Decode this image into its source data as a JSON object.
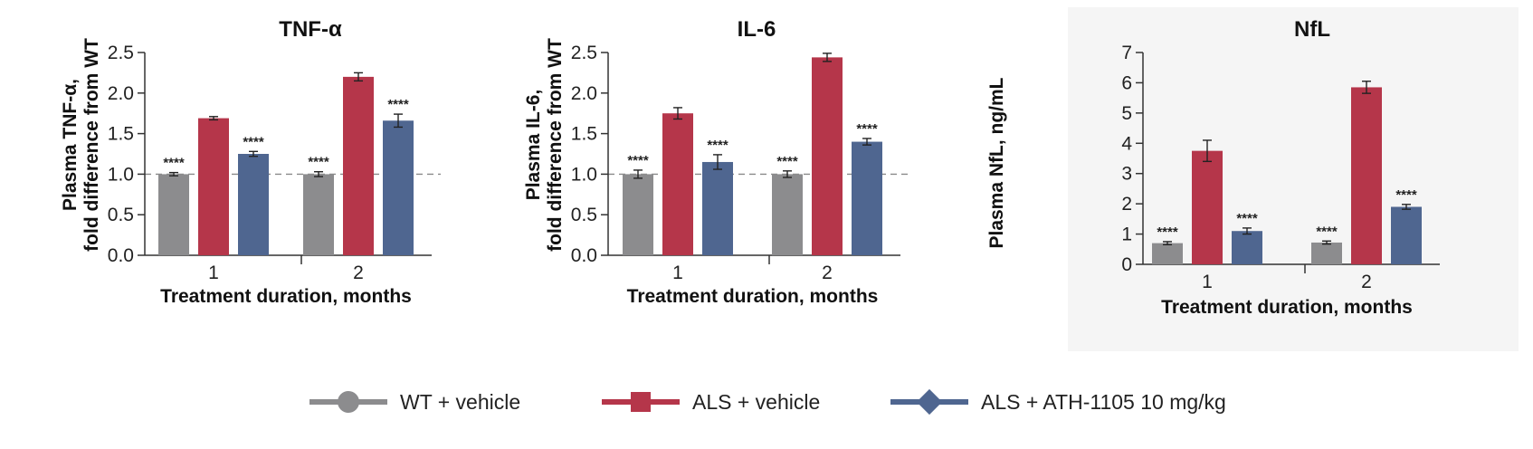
{
  "colors": {
    "wt": "#8c8c8e",
    "als": "#b5364a",
    "ath": "#4f6690"
  },
  "legend": [
    {
      "name": "WT + vehicle",
      "color": "#8c8c8e",
      "marker": "circle"
    },
    {
      "name": "ALS + vehicle",
      "color": "#b5364a",
      "marker": "square"
    },
    {
      "name": "ALS + ATH-1105 10 mg/kg",
      "color": "#4f6690",
      "marker": "diamond"
    }
  ],
  "chart_data": [
    {
      "type": "bar",
      "title": "TNF-α",
      "ylabel_lines": [
        "Plasma TNF-α,",
        "fold difference from WT"
      ],
      "xlabel": "Treatment duration, months",
      "categories": [
        "1",
        "2"
      ],
      "ylim": [
        0,
        2.5
      ],
      "yticks": [
        "0.0",
        "0.5",
        "1.0",
        "1.5",
        "2.0",
        "2.5"
      ],
      "reference_line": 1.0,
      "series": [
        {
          "name": "WT + vehicle",
          "values": [
            1.0,
            1.0
          ],
          "errors": [
            0.02,
            0.03
          ],
          "sig": [
            "****",
            "****"
          ]
        },
        {
          "name": "ALS + vehicle",
          "values": [
            1.69,
            2.2
          ],
          "errors": [
            0.02,
            0.05
          ],
          "sig": [
            "",
            ""
          ]
        },
        {
          "name": "ALS + ATH-1105 10 mg/kg",
          "values": [
            1.25,
            1.66
          ],
          "errors": [
            0.03,
            0.08
          ],
          "sig": [
            "****",
            "****"
          ]
        }
      ]
    },
    {
      "type": "bar",
      "title": "IL-6",
      "ylabel_lines": [
        "Plasma IL-6,",
        "fold difference from WT"
      ],
      "xlabel": "Treatment duration, months",
      "categories": [
        "1",
        "2"
      ],
      "ylim": [
        0,
        2.5
      ],
      "yticks": [
        "0.0",
        "0.5",
        "1.0",
        "1.5",
        "2.0",
        "2.5"
      ],
      "reference_line": 1.0,
      "series": [
        {
          "name": "WT + vehicle",
          "values": [
            1.0,
            1.0
          ],
          "errors": [
            0.05,
            0.04
          ],
          "sig": [
            "****",
            "****"
          ]
        },
        {
          "name": "ALS + vehicle",
          "values": [
            1.75,
            2.44
          ],
          "errors": [
            0.07,
            0.05
          ],
          "sig": [
            "",
            ""
          ]
        },
        {
          "name": "ALS + ATH-1105 10 mg/kg",
          "values": [
            1.15,
            1.4
          ],
          "errors": [
            0.09,
            0.04
          ],
          "sig": [
            "****",
            "****"
          ]
        }
      ]
    },
    {
      "type": "bar",
      "title": "NfL",
      "ylabel_lines": [
        "Plasma NfL, ng/mL"
      ],
      "xlabel": "Treatment duration, months",
      "categories": [
        "1",
        "2"
      ],
      "ylim": [
        0,
        7
      ],
      "yticks": [
        "0",
        "1",
        "2",
        "3",
        "4",
        "5",
        "6",
        "7"
      ],
      "series": [
        {
          "name": "WT + vehicle",
          "values": [
            0.7,
            0.72
          ],
          "errors": [
            0.05,
            0.05
          ],
          "sig": [
            "****",
            "****"
          ]
        },
        {
          "name": "ALS + vehicle",
          "values": [
            3.75,
            5.85
          ],
          "errors": [
            0.35,
            0.2
          ],
          "sig": [
            "",
            ""
          ]
        },
        {
          "name": "ALS + ATH-1105 10 mg/kg",
          "values": [
            1.1,
            1.9
          ],
          "errors": [
            0.1,
            0.08
          ],
          "sig": [
            "****",
            "****"
          ]
        }
      ]
    }
  ]
}
